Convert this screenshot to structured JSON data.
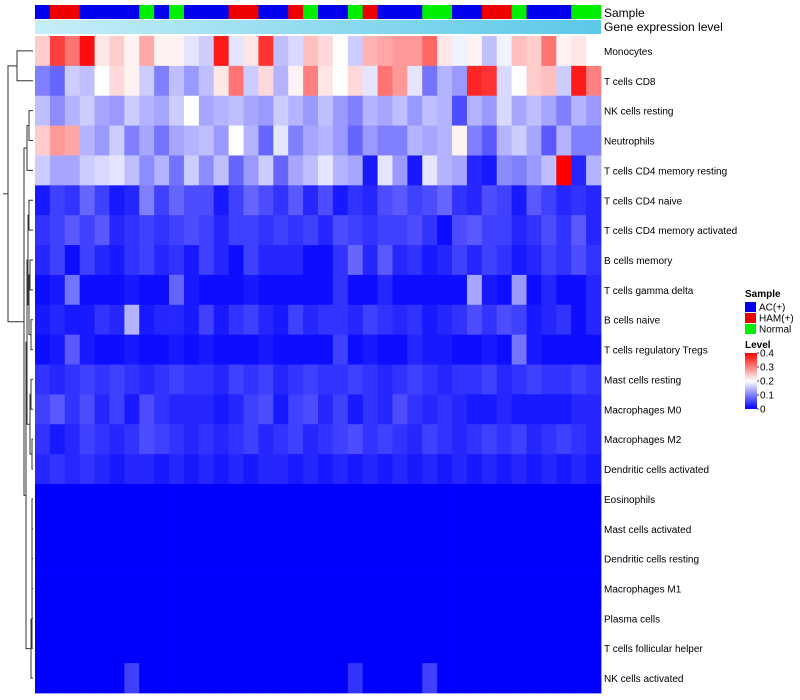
{
  "chart_data": {
    "type": "heatmap",
    "title": "",
    "annotation_labels": {
      "sample": "Sample",
      "gene": "Gene expression level"
    },
    "rows": [
      "Monocytes",
      "T cells CD8",
      "NK cells resting",
      "Neutrophils",
      "T cells CD4 memory resting",
      "T cells CD4 naive",
      "T cells CD4 memory activated",
      "B cells memory",
      "T cells gamma delta",
      "B cells naive",
      "T cells regulatory  Tregs",
      "Mast cells resting",
      "Macrophages M0",
      "Macrophages M2",
      "Dendritic cells activated",
      "Eosinophils",
      "Mast cells activated",
      "Dendritic cells resting",
      "Macrophages M1",
      "Plasma cells",
      "T cells follicular helper",
      "NK cells activated"
    ],
    "sample_groups": [
      "A",
      "H",
      "H",
      "A",
      "A",
      "A",
      "A",
      "N",
      "A",
      "N",
      "A",
      "A",
      "A",
      "H",
      "H",
      "A",
      "A",
      "H",
      "N",
      "A",
      "A",
      "N",
      "H",
      "A",
      "A",
      "A",
      "N",
      "N",
      "A",
      "A",
      "H",
      "H",
      "N",
      "A",
      "A",
      "A",
      "N",
      "N"
    ],
    "values": [
      [
        0.24,
        0.35,
        0.31,
        0.39,
        0.22,
        0.24,
        0.21,
        0.27,
        0.21,
        0.21,
        0.18,
        0.16,
        0.38,
        0.18,
        0.22,
        0.36,
        0.15,
        0.17,
        0.25,
        0.23,
        0.2,
        0.16,
        0.26,
        0.27,
        0.28,
        0.28,
        0.32,
        0.22,
        0.19,
        0.21,
        0.15,
        0.19,
        0.25,
        0.24,
        0.31,
        0.21,
        0.22,
        0.2
      ],
      [
        0.1,
        0.08,
        0.16,
        0.15,
        0.2,
        0.23,
        0.21,
        0.16,
        0.1,
        0.15,
        0.12,
        0.15,
        0.22,
        0.31,
        0.16,
        0.23,
        0.14,
        0.21,
        0.3,
        0.22,
        0.2,
        0.23,
        0.18,
        0.31,
        0.28,
        0.18,
        0.09,
        0.14,
        0.12,
        0.37,
        0.36,
        0.17,
        0.2,
        0.24,
        0.25,
        0.16,
        0.38,
        0.3
      ],
      [
        0.15,
        0.11,
        0.14,
        0.16,
        0.13,
        0.12,
        0.16,
        0.14,
        0.13,
        0.16,
        0.2,
        0.13,
        0.14,
        0.15,
        0.13,
        0.12,
        0.16,
        0.14,
        0.12,
        0.15,
        0.12,
        0.1,
        0.14,
        0.13,
        0.15,
        0.12,
        0.15,
        0.14,
        0.06,
        0.14,
        0.12,
        0.17,
        0.13,
        0.15,
        0.13,
        0.1,
        0.14,
        0.12
      ],
      [
        0.24,
        0.28,
        0.27,
        0.14,
        0.12,
        0.16,
        0.1,
        0.13,
        0.09,
        0.13,
        0.14,
        0.15,
        0.12,
        0.2,
        0.14,
        0.08,
        0.18,
        0.1,
        0.13,
        0.14,
        0.12,
        0.08,
        0.12,
        0.1,
        0.1,
        0.14,
        0.13,
        0.14,
        0.21,
        0.1,
        0.07,
        0.14,
        0.16,
        0.13,
        0.07,
        0.14,
        0.1,
        0.1
      ],
      [
        0.16,
        0.13,
        0.13,
        0.16,
        0.17,
        0.18,
        0.15,
        0.11,
        0.14,
        0.09,
        0.16,
        0.11,
        0.15,
        0.08,
        0.12,
        0.16,
        0.08,
        0.13,
        0.15,
        0.18,
        0.14,
        0.13,
        0.02,
        0.18,
        0.12,
        0.02,
        0.18,
        0.14,
        0.13,
        0.03,
        0.02,
        0.11,
        0.1,
        0.12,
        0.15,
        0.4,
        0.03,
        0.14
      ],
      [
        0.02,
        0.05,
        0.04,
        0.08,
        0.05,
        0.02,
        0.03,
        0.1,
        0.05,
        0.08,
        0.06,
        0.06,
        0.02,
        0.05,
        0.08,
        0.06,
        0.04,
        0.07,
        0.03,
        0.06,
        0.02,
        0.04,
        0.03,
        0.06,
        0.07,
        0.05,
        0.06,
        0.08,
        0.04,
        0.03,
        0.06,
        0.05,
        0.02,
        0.07,
        0.05,
        0.03,
        0.04,
        0.03
      ],
      [
        0.04,
        0.05,
        0.07,
        0.05,
        0.07,
        0.03,
        0.04,
        0.05,
        0.04,
        0.05,
        0.06,
        0.05,
        0.03,
        0.05,
        0.05,
        0.04,
        0.05,
        0.04,
        0.05,
        0.03,
        0.06,
        0.05,
        0.04,
        0.05,
        0.05,
        0.06,
        0.04,
        0.01,
        0.06,
        0.07,
        0.05,
        0.05,
        0.03,
        0.04,
        0.06,
        0.04,
        0.07,
        0.03
      ],
      [
        0.03,
        0.05,
        0.01,
        0.05,
        0.03,
        0.02,
        0.04,
        0.05,
        0.03,
        0.04,
        0.02,
        0.05,
        0.03,
        0.01,
        0.05,
        0.03,
        0.03,
        0.03,
        0.01,
        0.01,
        0.04,
        0.08,
        0.03,
        0.07,
        0.03,
        0.04,
        0.02,
        0.03,
        0.05,
        0.03,
        0.05,
        0.04,
        0.02,
        0.03,
        0.05,
        0.04,
        0.06,
        0.04
      ],
      [
        0.01,
        0.02,
        0.09,
        0.01,
        0.01,
        0.01,
        0.02,
        0.01,
        0.01,
        0.08,
        0.02,
        0.01,
        0.01,
        0.01,
        0.02,
        0.01,
        0.01,
        0.01,
        0.01,
        0.01,
        0.04,
        0.01,
        0.01,
        0.03,
        0.01,
        0.01,
        0.01,
        0.01,
        0.01,
        0.13,
        0.02,
        0.01,
        0.12,
        0.01,
        0.03,
        0.01,
        0.01,
        0.03
      ],
      [
        0.02,
        0.03,
        0.02,
        0.02,
        0.04,
        0.03,
        0.14,
        0.02,
        0.03,
        0.03,
        0.02,
        0.05,
        0.02,
        0.04,
        0.05,
        0.03,
        0.02,
        0.05,
        0.03,
        0.04,
        0.04,
        0.03,
        0.05,
        0.04,
        0.03,
        0.04,
        0.02,
        0.03,
        0.04,
        0.06,
        0.04,
        0.06,
        0.05,
        0.02,
        0.03,
        0.04,
        0.01,
        0.03
      ],
      [
        0.01,
        0.02,
        0.07,
        0.02,
        0.01,
        0.01,
        0.02,
        0.01,
        0.01,
        0.02,
        0.01,
        0.02,
        0.01,
        0.01,
        0.01,
        0.02,
        0.01,
        0.01,
        0.01,
        0.01,
        0.05,
        0.01,
        0.02,
        0.01,
        0.01,
        0.03,
        0.02,
        0.02,
        0.01,
        0.01,
        0.02,
        0.01,
        0.09,
        0.02,
        0.01,
        0.01,
        0.01,
        0.01
      ],
      [
        0.04,
        0.03,
        0.04,
        0.05,
        0.04,
        0.05,
        0.04,
        0.03,
        0.04,
        0.05,
        0.04,
        0.04,
        0.03,
        0.05,
        0.04,
        0.05,
        0.03,
        0.04,
        0.05,
        0.04,
        0.04,
        0.05,
        0.04,
        0.03,
        0.04,
        0.05,
        0.04,
        0.03,
        0.04,
        0.04,
        0.05,
        0.03,
        0.04,
        0.05,
        0.04,
        0.04,
        0.05,
        0.04
      ],
      [
        0.05,
        0.07,
        0.04,
        0.06,
        0.03,
        0.05,
        0.02,
        0.06,
        0.04,
        0.03,
        0.03,
        0.03,
        0.02,
        0.03,
        0.05,
        0.06,
        0.02,
        0.05,
        0.06,
        0.03,
        0.05,
        0.02,
        0.04,
        0.03,
        0.06,
        0.04,
        0.03,
        0.04,
        0.03,
        0.02,
        0.02,
        0.03,
        0.02,
        0.02,
        0.02,
        0.02,
        0.03,
        0.03
      ],
      [
        0.04,
        0.02,
        0.03,
        0.05,
        0.04,
        0.03,
        0.04,
        0.06,
        0.05,
        0.04,
        0.03,
        0.04,
        0.03,
        0.04,
        0.05,
        0.03,
        0.04,
        0.05,
        0.03,
        0.04,
        0.05,
        0.06,
        0.04,
        0.05,
        0.04,
        0.03,
        0.05,
        0.04,
        0.03,
        0.04,
        0.05,
        0.04,
        0.05,
        0.03,
        0.04,
        0.05,
        0.04,
        0.03
      ],
      [
        0.03,
        0.04,
        0.03,
        0.04,
        0.03,
        0.02,
        0.03,
        0.03,
        0.02,
        0.03,
        0.02,
        0.03,
        0.02,
        0.03,
        0.02,
        0.03,
        0.03,
        0.02,
        0.03,
        0.02,
        0.03,
        0.02,
        0.03,
        0.02,
        0.03,
        0.02,
        0.03,
        0.02,
        0.03,
        0.02,
        0.03,
        0.02,
        0.03,
        0.02,
        0.03,
        0.02,
        0.03,
        0.02
      ],
      [
        0,
        0,
        0,
        0,
        0,
        0,
        0,
        0,
        0,
        0,
        0,
        0,
        0,
        0,
        0,
        0,
        0,
        0,
        0,
        0,
        0,
        0,
        0,
        0,
        0,
        0,
        0,
        0,
        0,
        0,
        0,
        0,
        0,
        0,
        0,
        0,
        0,
        0
      ],
      [
        0,
        0,
        0,
        0,
        0,
        0,
        0,
        0,
        0,
        0,
        0,
        0,
        0,
        0,
        0,
        0,
        0,
        0,
        0,
        0,
        0,
        0,
        0,
        0,
        0,
        0,
        0,
        0,
        0,
        0,
        0,
        0,
        0,
        0,
        0,
        0,
        0,
        0
      ],
      [
        0,
        0,
        0,
        0,
        0,
        0,
        0,
        0,
        0,
        0,
        0,
        0,
        0,
        0,
        0,
        0,
        0,
        0,
        0,
        0,
        0,
        0,
        0,
        0,
        0,
        0,
        0,
        0,
        0,
        0,
        0,
        0,
        0,
        0,
        0,
        0,
        0,
        0
      ],
      [
        0,
        0,
        0,
        0,
        0,
        0,
        0,
        0,
        0,
        0,
        0,
        0,
        0,
        0,
        0,
        0,
        0,
        0,
        0,
        0,
        0,
        0,
        0,
        0,
        0,
        0,
        0,
        0,
        0,
        0,
        0,
        0,
        0,
        0,
        0,
        0,
        0,
        0
      ],
      [
        0,
        0,
        0,
        0,
        0,
        0,
        0,
        0,
        0,
        0,
        0,
        0,
        0,
        0,
        0,
        0,
        0,
        0,
        0,
        0,
        0,
        0,
        0,
        0,
        0,
        0,
        0,
        0,
        0,
        0,
        0,
        0,
        0,
        0,
        0,
        0,
        0,
        0
      ],
      [
        0,
        0,
        0,
        0,
        0,
        0,
        0,
        0,
        0,
        0,
        0,
        0,
        0,
        0,
        0,
        0,
        0,
        0,
        0,
        0,
        0,
        0,
        0,
        0,
        0,
        0,
        0,
        0,
        0,
        0,
        0,
        0,
        0,
        0,
        0,
        0,
        0,
        0
      ],
      [
        0,
        0,
        0,
        0,
        0,
        0,
        0.05,
        0,
        0,
        0,
        0,
        0,
        0,
        0,
        0,
        0,
        0,
        0,
        0,
        0,
        0,
        0.04,
        0,
        0,
        0,
        0,
        0.05,
        0,
        0,
        0,
        0,
        0,
        0,
        0,
        0,
        0,
        0,
        0
      ]
    ],
    "value_range": [
      0,
      0.4
    ],
    "legend": {
      "sample_title": "Sample",
      "groups": [
        {
          "key": "A",
          "label": "AC(+)",
          "color": "#0000EE"
        },
        {
          "key": "H",
          "label": "HAM(+)",
          "color": "#EE0000"
        },
        {
          "key": "N",
          "label": "Normal",
          "color": "#00EE00"
        }
      ],
      "level_title": "Level",
      "level_ticks": [
        {
          "value": 0.4,
          "label": "0.4"
        },
        {
          "value": 0.3,
          "label": "0.3"
        },
        {
          "value": 0.2,
          "label": "0.2"
        },
        {
          "value": 0.1,
          "label": "0.1"
        },
        {
          "value": 0,
          "label": "0"
        }
      ]
    },
    "colors": {
      "low": "#0000FF",
      "mid": "#FFFFFF",
      "high": "#FF0000",
      "gene_bar_light": "#C6EEF8",
      "gene_bar_dark": "#5BC8E8"
    }
  }
}
